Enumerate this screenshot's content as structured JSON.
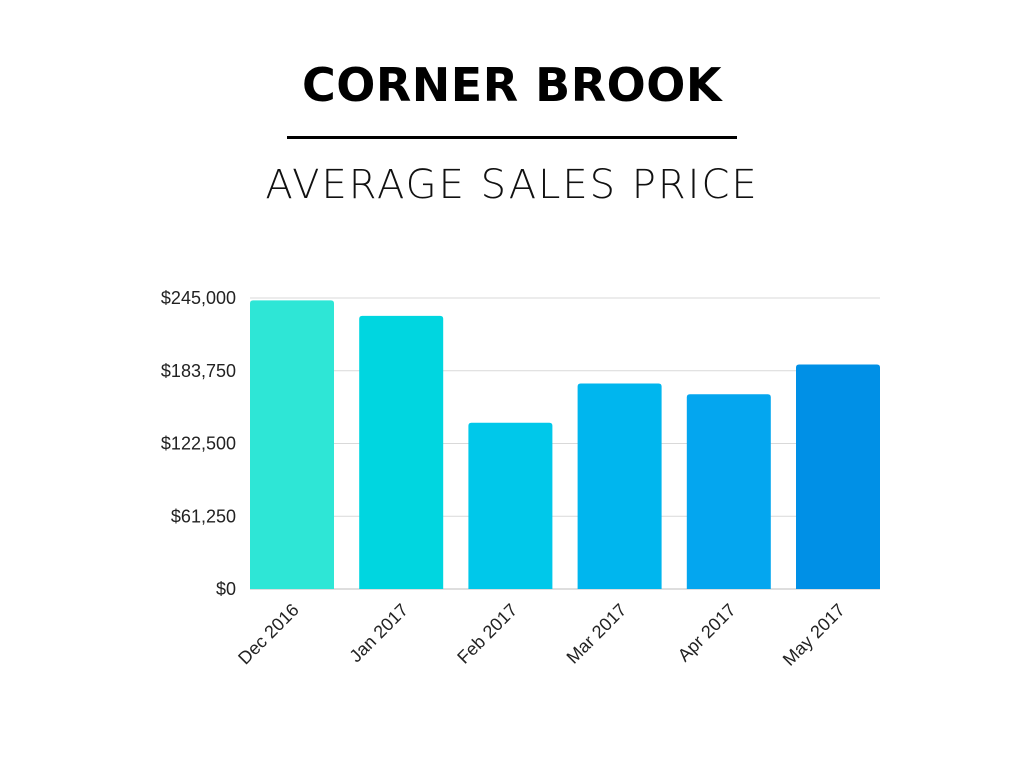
{
  "title": "CORNER BROOK",
  "subtitle": "AVERAGE SALES PRICE",
  "chart_data": {
    "type": "bar",
    "title": "CORNER BROOK",
    "subtitle": "AVERAGE SALES PRICE",
    "xlabel": "",
    "ylabel": "",
    "categories": [
      "Dec 2016",
      "Jan 2017",
      "Feb 2017",
      "Mar 2017",
      "Apr 2017",
      "May 2017"
    ],
    "values": [
      243000,
      230000,
      140000,
      173000,
      164000,
      189000
    ],
    "ylim": [
      0,
      245000
    ],
    "yticks": [
      0,
      61250,
      122500,
      183750,
      245000
    ],
    "ytick_labels": [
      "$0",
      "$61,250",
      "$122,500",
      "$183,750",
      "$245,000"
    ],
    "bar_colors": [
      "#2ee6d6",
      "#00d6e0",
      "#00c8ea",
      "#00b6ee",
      "#04a6ef",
      "#0090e6"
    ],
    "grid": true,
    "legend": "none"
  }
}
